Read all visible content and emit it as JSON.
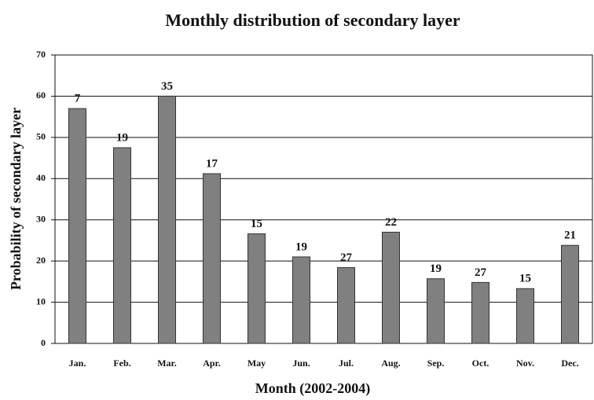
{
  "chart_data": {
    "type": "bar",
    "title": "Monthly distribution of secondary layer",
    "x_label": "Month (2002-2004)",
    "y_label": "Probability of secondary layer",
    "categories": [
      "Jan.",
      "Feb.",
      "Mar.",
      "Apr.",
      "May",
      "Jun.",
      "Jul.",
      "Aug.",
      "Sep.",
      "Oct.",
      "Nov.",
      "Dec."
    ],
    "values": [
      57,
      47.5,
      60,
      41.2,
      26.6,
      21,
      18.4,
      27,
      15.7,
      14.8,
      13.3,
      23.8
    ],
    "bar_annotations": [
      "7",
      "19",
      "35",
      "17",
      "15",
      "19",
      "27",
      "22",
      "19",
      "27",
      "15",
      "21"
    ],
    "color": "#808080",
    "ylim": [
      0,
      70
    ],
    "yticks": [
      0,
      10,
      20,
      30,
      40,
      50,
      60,
      70
    ],
    "grid": true
  }
}
